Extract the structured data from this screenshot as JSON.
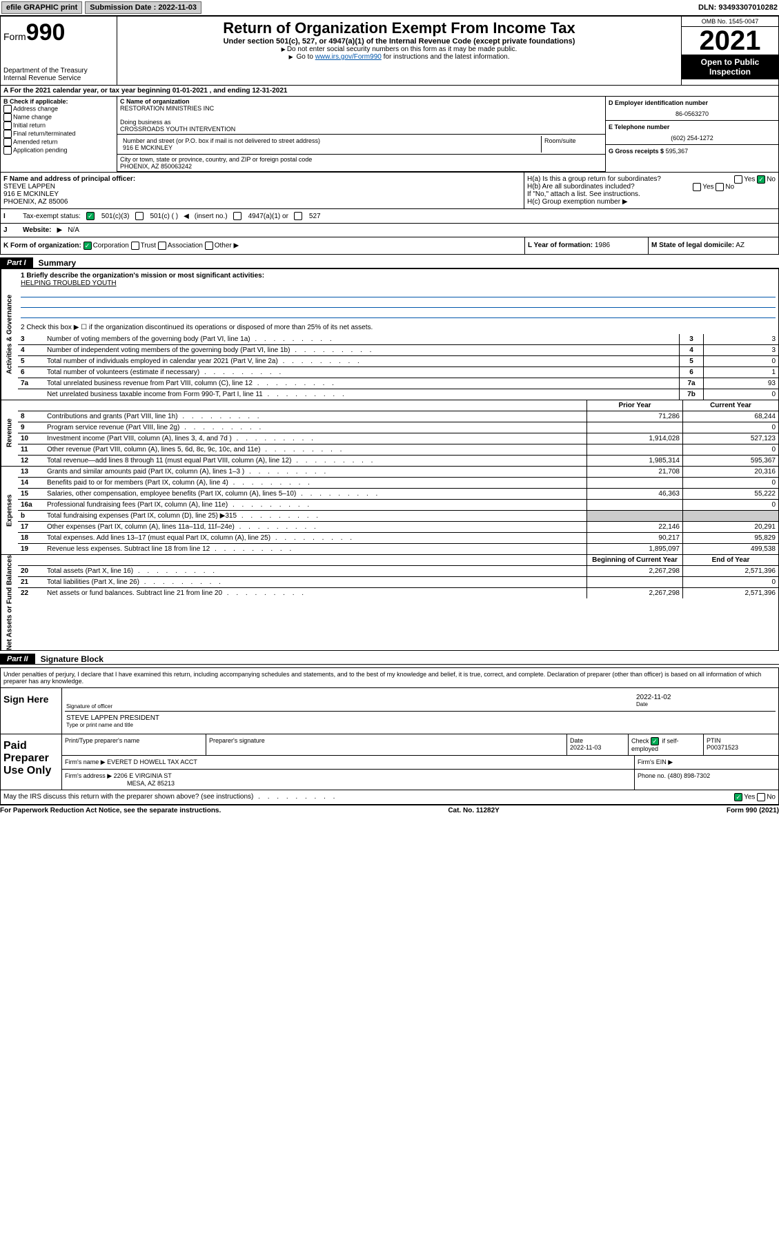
{
  "topbar": {
    "efile_label": "efile GRAPHIC print",
    "submission_label": "Submission Date : 2022-11-03",
    "dln": "DLN: 93493307010282"
  },
  "header": {
    "form_prefix": "Form",
    "form_number": "990",
    "dept": "Department of the Treasury",
    "irs": "Internal Revenue Service",
    "title": "Return of Organization Exempt From Income Tax",
    "subtitle": "Under section 501(c), 527, or 4947(a)(1) of the Internal Revenue Code (except private foundations)",
    "note1": "Do not enter social security numbers on this form as it may be made public.",
    "note2_prefix": "Go to ",
    "note2_link": "www.irs.gov/Form990",
    "note2_suffix": " for instructions and the latest information.",
    "omb": "OMB No. 1545-0047",
    "year": "2021",
    "open_public": "Open to Public Inspection"
  },
  "row_a": "A For the 2021 calendar year, or tax year beginning 01-01-2021   , and ending 12-31-2021",
  "section_b": {
    "label": "B Check if applicable:",
    "items": [
      "Address change",
      "Name change",
      "Initial return",
      "Final return/terminated",
      "Amended return",
      "Application pending"
    ]
  },
  "section_c": {
    "name_label": "C Name of organization",
    "name": "RESTORATION MINISTRIES INC",
    "dba_label": "Doing business as",
    "dba": "CROSSROADS YOUTH INTERVENTION",
    "street_label": "Number and street (or P.O. box if mail is not delivered to street address)",
    "street": "916 E MCKINLEY",
    "room_label": "Room/suite",
    "city_label": "City or town, state or province, country, and ZIP or foreign postal code",
    "city": "PHOENIX, AZ  850063242"
  },
  "section_d": {
    "ein_label": "D Employer identification number",
    "ein": "86-0563270",
    "phone_label": "E Telephone number",
    "phone": "(602) 254-1272",
    "gross_label": "G Gross receipts $",
    "gross": "595,367"
  },
  "section_f": {
    "label": "F Name and address of principal officer:",
    "name": "STEVE LAPPEN",
    "street": "916 E MCKINLEY",
    "city": "PHOENIX, AZ  85006"
  },
  "section_h": {
    "ha_label": "H(a)  Is this a group return for subordinates?",
    "hb_label": "H(b)  Are all subordinates included?",
    "hb_note": "If \"No,\" attach a list. See instructions.",
    "hc_label": "H(c)  Group exemption number",
    "yes": "Yes",
    "no": "No"
  },
  "section_i": {
    "label": "Tax-exempt status:",
    "opt1": "501(c)(3)",
    "opt2": "501(c) (   )",
    "opt2_note": "(insert no.)",
    "opt3": "4947(a)(1) or",
    "opt4": "527"
  },
  "section_j": {
    "label": "Website:",
    "value": "N/A"
  },
  "section_k": {
    "label": "K Form of organization:",
    "corp": "Corporation",
    "trust": "Trust",
    "assoc": "Association",
    "other": "Other"
  },
  "section_l": {
    "label": "L Year of formation:",
    "value": "1986"
  },
  "section_m": {
    "label": "M State of legal domicile:",
    "value": "AZ"
  },
  "part1": {
    "tab": "Part I",
    "title": "Summary",
    "q1_label": "1  Briefly describe the organization's mission or most significant activities:",
    "q1_value": "HELPING TROUBLED YOUTH",
    "q2": "2   Check this box ▶ ☐  if the organization discontinued its operations or disposed of more than 25% of its net assets."
  },
  "governance_label": "Activities & Governance",
  "revenue_label": "Revenue",
  "expenses_label": "Expenses",
  "netassets_label": "Net Assets or Fund Balances",
  "gov_rows": [
    {
      "n": "3",
      "d": "Number of voting members of the governing body (Part VI, line 1a)",
      "b": "3",
      "v": "3"
    },
    {
      "n": "4",
      "d": "Number of independent voting members of the governing body (Part VI, line 1b)",
      "b": "4",
      "v": "3"
    },
    {
      "n": "5",
      "d": "Total number of individuals employed in calendar year 2021 (Part V, line 2a)",
      "b": "5",
      "v": "0"
    },
    {
      "n": "6",
      "d": "Total number of volunteers (estimate if necessary)",
      "b": "6",
      "v": "1"
    },
    {
      "n": "7a",
      "d": "Total unrelated business revenue from Part VIII, column (C), line 12",
      "b": "7a",
      "v": "93"
    },
    {
      "n": "",
      "d": "Net unrelated business taxable income from Form 990-T, Part I, line 11",
      "b": "7b",
      "v": "0"
    }
  ],
  "col_headers": {
    "prior": "Prior Year",
    "current": "Current Year"
  },
  "rev_rows": [
    {
      "n": "8",
      "d": "Contributions and grants (Part VIII, line 1h)",
      "p": "71,286",
      "c": "68,244"
    },
    {
      "n": "9",
      "d": "Program service revenue (Part VIII, line 2g)",
      "p": "",
      "c": "0"
    },
    {
      "n": "10",
      "d": "Investment income (Part VIII, column (A), lines 3, 4, and 7d )",
      "p": "1,914,028",
      "c": "527,123"
    },
    {
      "n": "11",
      "d": "Other revenue (Part VIII, column (A), lines 5, 6d, 8c, 9c, 10c, and 11e)",
      "p": "",
      "c": "0"
    },
    {
      "n": "12",
      "d": "Total revenue—add lines 8 through 11 (must equal Part VIII, column (A), line 12)",
      "p": "1,985,314",
      "c": "595,367"
    }
  ],
  "exp_rows": [
    {
      "n": "13",
      "d": "Grants and similar amounts paid (Part IX, column (A), lines 1–3 )",
      "p": "21,708",
      "c": "20,316"
    },
    {
      "n": "14",
      "d": "Benefits paid to or for members (Part IX, column (A), line 4)",
      "p": "",
      "c": "0"
    },
    {
      "n": "15",
      "d": "Salaries, other compensation, employee benefits (Part IX, column (A), lines 5–10)",
      "p": "46,363",
      "c": "55,222"
    },
    {
      "n": "16a",
      "d": "Professional fundraising fees (Part IX, column (A), line 11e)",
      "p": "",
      "c": "0"
    },
    {
      "n": "b",
      "d": "Total fundraising expenses (Part IX, column (D), line 25) ▶315",
      "p": "shade",
      "c": "shade"
    },
    {
      "n": "17",
      "d": "Other expenses (Part IX, column (A), lines 11a–11d, 11f–24e)",
      "p": "22,146",
      "c": "20,291"
    },
    {
      "n": "18",
      "d": "Total expenses. Add lines 13–17 (must equal Part IX, column (A), line 25)",
      "p": "90,217",
      "c": "95,829"
    },
    {
      "n": "19",
      "d": "Revenue less expenses. Subtract line 18 from line 12",
      "p": "1,895,097",
      "c": "499,538"
    }
  ],
  "net_headers": {
    "begin": "Beginning of Current Year",
    "end": "End of Year"
  },
  "net_rows": [
    {
      "n": "20",
      "d": "Total assets (Part X, line 16)",
      "p": "2,267,298",
      "c": "2,571,396"
    },
    {
      "n": "21",
      "d": "Total liabilities (Part X, line 26)",
      "p": "",
      "c": "0"
    },
    {
      "n": "22",
      "d": "Net assets or fund balances. Subtract line 21 from line 20",
      "p": "2,267,298",
      "c": "2,571,396"
    }
  ],
  "part2": {
    "tab": "Part II",
    "title": "Signature Block",
    "declaration": "Under penalties of perjury, I declare that I have examined this return, including accompanying schedules and statements, and to the best of my knowledge and belief, it is true, correct, and complete. Declaration of preparer (other than officer) is based on all information of which preparer has any knowledge."
  },
  "sign_here": {
    "label": "Sign Here",
    "sig_label": "Signature of officer",
    "date_label": "Date",
    "date": "2022-11-02",
    "name": "STEVE LAPPEN PRESIDENT",
    "name_label": "Type or print name and title"
  },
  "preparer": {
    "label": "Paid Preparer Use Only",
    "print_label": "Print/Type preparer's name",
    "sig_label": "Preparer's signature",
    "date_label": "Date",
    "date": "2022-11-03",
    "check_label": "Check",
    "self_emp": "if self-employed",
    "ptin_label": "PTIN",
    "ptin": "P00371523",
    "firm_name_label": "Firm's name",
    "firm_name": "EVERET D HOWELL TAX ACCT",
    "firm_ein_label": "Firm's EIN",
    "firm_addr_label": "Firm's address",
    "firm_addr": "2206 E VIRGINIA ST",
    "firm_city": "MESA, AZ  85213",
    "phone_label": "Phone no.",
    "phone": "(480) 898-7302"
  },
  "discuss": {
    "text": "May the IRS discuss this return with the preparer shown above? (see instructions)",
    "yes": "Yes",
    "no": "No"
  },
  "footer": {
    "left": "For Paperwork Reduction Act Notice, see the separate instructions.",
    "mid": "Cat. No. 11282Y",
    "right": "Form 990 (2021)"
  }
}
